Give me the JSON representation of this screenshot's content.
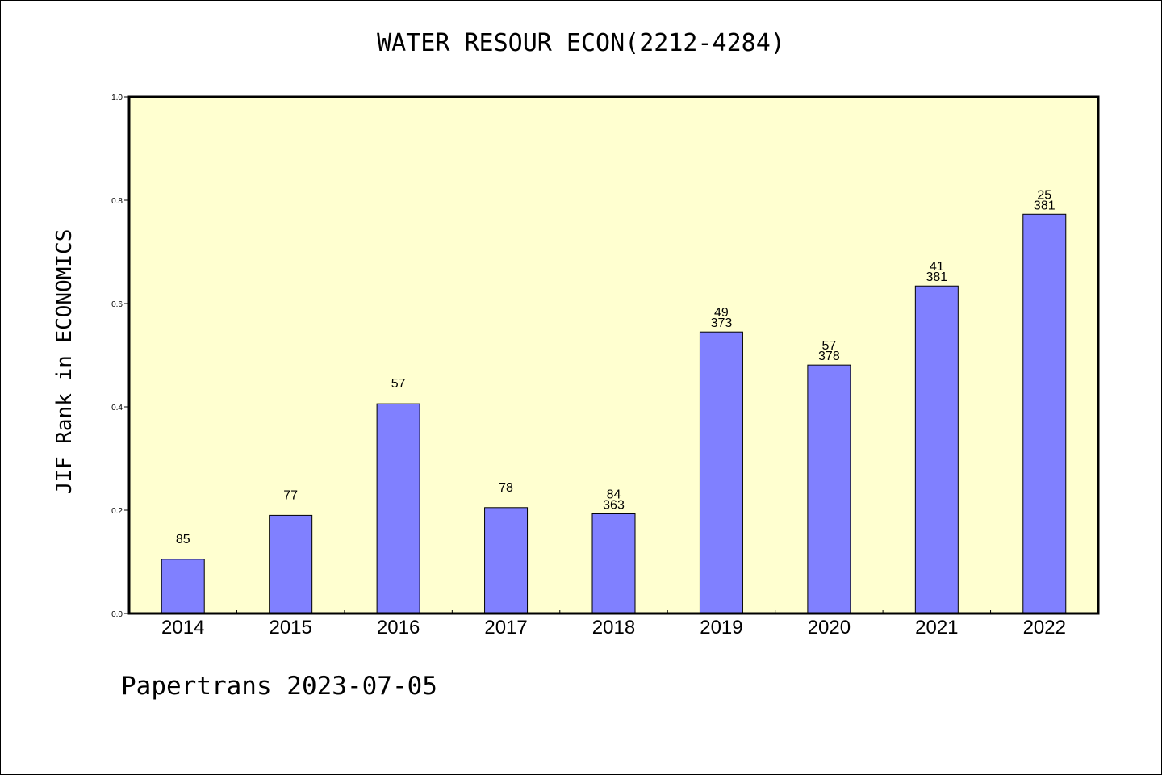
{
  "chart_data": {
    "type": "bar",
    "title": "WATER RESOUR ECON(2212-4284)",
    "xlabel": "",
    "ylabel": "JIF Rank in ECONOMICS",
    "ylim": [
      0,
      1.0
    ],
    "yticks": [
      "0.0",
      "0.2",
      "0.4",
      "0.6",
      "0.8",
      "1.0"
    ],
    "categories": [
      "2014",
      "2015",
      "2016",
      "2017",
      "2018",
      "2019",
      "2020",
      "2021",
      "2022"
    ],
    "values": [
      0.105,
      0.19,
      0.406,
      0.205,
      0.193,
      0.545,
      0.481,
      0.634,
      0.773
    ],
    "labels_top": [
      "85",
      "77",
      "57",
      "78",
      "84",
      "49",
      "57",
      "41",
      "25"
    ],
    "labels_bottom": [
      "",
      "",
      "",
      "",
      "363",
      "373",
      "378",
      "381",
      "381"
    ],
    "grid": false,
    "colors": {
      "plot_background": "#ffffd0",
      "bar_fill": "#8080ff",
      "bar_stroke": "#000000"
    }
  },
  "footer": "Papertrans 2023-07-05"
}
